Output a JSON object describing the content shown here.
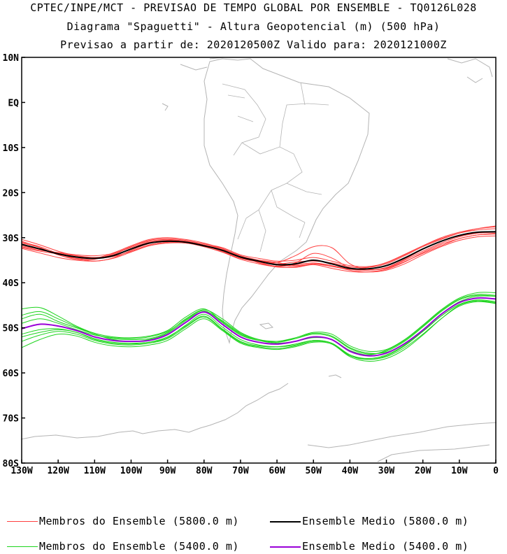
{
  "title": {
    "line1": "CPTEC/INPE/MCT - PREVISAO DE TEMPO GLOBAL POR ENSEMBLE - TQ0126L028",
    "line2": "Diagrama \"Spaguetti\" - Altura Geopotencial (m) (500 hPa)",
    "line3": "Previsao a partir de: 2020120500Z  Valido para: 2020121000Z"
  },
  "map": {
    "lat_labels": [
      "10N",
      "EQ",
      "10S",
      "20S",
      "30S",
      "40S",
      "50S",
      "60S",
      "70S",
      "80S"
    ],
    "lat_values": [
      10,
      0,
      -10,
      -20,
      -30,
      -40,
      -50,
      -60,
      -70,
      -80
    ],
    "lon_labels": [
      "130W",
      "120W",
      "110W",
      "100W",
      "90W",
      "80W",
      "70W",
      "60W",
      "50W",
      "40W",
      "30W",
      "20W",
      "10W",
      "0"
    ],
    "lon_values": [
      -130,
      -120,
      -110,
      -100,
      -90,
      -80,
      -70,
      -60,
      -50,
      -40,
      -30,
      -20,
      -10,
      0
    ],
    "lon_range": [
      -130,
      0
    ],
    "lat_range": [
      -80,
      10
    ],
    "coastline_color": "#b4b4b4"
  },
  "chart_data": {
    "type": "line",
    "x_unit": "longitude (deg)",
    "y_unit": "latitude (deg)",
    "xlim": [
      -130,
      0
    ],
    "ylim": [
      -80,
      10
    ],
    "contours": [
      {
        "level": "5800.0 m",
        "members_color": "#ff4040",
        "mean_color": "#000000",
        "mean": {
          "x": [
            -130,
            -125,
            -120,
            -115,
            -110,
            -105,
            -100,
            -95,
            -90,
            -85,
            -80,
            -75,
            -70,
            -65,
            -60,
            -55,
            -50,
            -45,
            -40,
            -35,
            -30,
            -25,
            -20,
            -15,
            -10,
            -5,
            0
          ],
          "y": [
            -31.5,
            -32.5,
            -33.6,
            -34.3,
            -34.6,
            -34.0,
            -32.5,
            -31.2,
            -30.8,
            -31.0,
            -31.8,
            -32.8,
            -34.3,
            -35.2,
            -36.0,
            -35.8,
            -35.0,
            -35.8,
            -36.8,
            -36.9,
            -36.2,
            -34.5,
            -32.5,
            -30.8,
            -29.5,
            -28.8,
            -28.7
          ]
        },
        "members": [
          {
            "y": [
              -31.0,
              -32.0,
              -33.5,
              -34.6,
              -35.2,
              -34.5,
              -32.8,
              -31.3,
              -30.6,
              -30.8,
              -31.6,
              -32.6,
              -34.0,
              -35.6,
              -36.3,
              -35.6,
              -33.5,
              -34.5,
              -36.7,
              -37.2,
              -36.7,
              -35.0,
              -33.0,
              -31.2,
              -29.8,
              -29.0,
              -28.6
            ]
          },
          {
            "y": [
              -32.0,
              -32.8,
              -33.3,
              -33.8,
              -34.0,
              -33.5,
              -32.2,
              -31.0,
              -30.6,
              -31.0,
              -32.0,
              -33.2,
              -34.6,
              -35.0,
              -35.5,
              -36.2,
              -35.8,
              -36.4,
              -37.0,
              -36.6,
              -35.5,
              -33.7,
              -31.8,
              -30.2,
              -29.0,
              -28.3,
              -28.0
            ]
          },
          {
            "y": [
              -30.4,
              -31.6,
              -33.0,
              -34.0,
              -34.4,
              -33.8,
              -32.0,
              -30.8,
              -30.4,
              -30.8,
              -31.6,
              -32.4,
              -34.2,
              -35.0,
              -35.5,
              -34.0,
              -32.0,
              -32.2,
              -35.8,
              -37.0,
              -36.8,
              -35.3,
              -33.5,
              -31.8,
              -30.2,
              -29.4,
              -29.0
            ]
          },
          {
            "y": [
              -32.4,
              -33.4,
              -34.4,
              -35.0,
              -35.2,
              -34.6,
              -33.2,
              -31.8,
              -31.2,
              -31.2,
              -32.0,
              -33.2,
              -34.8,
              -35.8,
              -36.5,
              -36.6,
              -36.0,
              -36.8,
              -37.5,
              -37.6,
              -37.0,
              -35.4,
              -33.3,
              -31.5,
              -30.2,
              -29.4,
              -29.2
            ]
          },
          {
            "y": [
              -31.2,
              -32.2,
              -33.8,
              -34.8,
              -34.8,
              -33.6,
              -32.0,
              -30.6,
              -30.2,
              -30.6,
              -31.4,
              -32.2,
              -33.8,
              -34.6,
              -35.2,
              -35.0,
              -34.4,
              -35.2,
              -36.2,
              -36.4,
              -35.6,
              -33.8,
              -31.8,
              -30.0,
              -28.8,
              -28.0,
              -27.6
            ]
          },
          {
            "y": [
              -31.8,
              -32.6,
              -33.4,
              -34.0,
              -34.4,
              -34.2,
              -33.0,
              -31.6,
              -31.0,
              -31.2,
              -31.8,
              -32.8,
              -34.4,
              -35.4,
              -36.4,
              -36.0,
              -35.6,
              -36.2,
              -37.2,
              -37.6,
              -37.2,
              -35.8,
              -33.8,
              -32.0,
              -30.6,
              -29.8,
              -29.6
            ]
          },
          {
            "y": [
              -30.8,
              -32.2,
              -33.8,
              -34.6,
              -34.6,
              -33.4,
              -31.8,
              -30.4,
              -30.0,
              -30.4,
              -31.2,
              -32.4,
              -34.0,
              -35.0,
              -35.8,
              -35.4,
              -35.2,
              -35.6,
              -36.5,
              -36.6,
              -35.8,
              -34.0,
              -32.0,
              -30.4,
              -29.0,
              -28.0,
              -27.4
            ]
          },
          {
            "y": [
              -32.2,
              -33.0,
              -33.6,
              -34.2,
              -34.6,
              -34.2,
              -33.0,
              -31.6,
              -31.0,
              -31.0,
              -31.8,
              -33.0,
              -34.6,
              -35.4,
              -36.0,
              -36.4,
              -35.8,
              -36.2,
              -37.0,
              -37.2,
              -36.6,
              -34.8,
              -32.6,
              -30.8,
              -29.6,
              -29.0,
              -28.8
            ]
          }
        ]
      },
      {
        "level": "5400.0 m",
        "members_color": "#1ed41e",
        "mean_color": "#9a00d8",
        "mean": {
          "x": [
            -130,
            -125,
            -120,
            -115,
            -110,
            -105,
            -100,
            -95,
            -90,
            -85,
            -80,
            -75,
            -70,
            -65,
            -60,
            -55,
            -50,
            -45,
            -40,
            -35,
            -30,
            -25,
            -20,
            -15,
            -10,
            -5,
            0
          ],
          "y": [
            -50.2,
            -49.2,
            -49.6,
            -50.6,
            -52.0,
            -52.8,
            -53.0,
            -52.8,
            -51.5,
            -48.8,
            -46.5,
            -49.2,
            -52.0,
            -53.2,
            -53.6,
            -53.0,
            -52.0,
            -52.6,
            -55.2,
            -56.2,
            -55.6,
            -53.5,
            -50.5,
            -47.0,
            -44.4,
            -43.4,
            -43.6
          ]
        },
        "members": [
          {
            "y": [
              -48.0,
              -47.0,
              -48.6,
              -50.0,
              -51.4,
              -52.4,
              -52.6,
              -52.4,
              -51.0,
              -48.0,
              -46.0,
              -48.0,
              -51.0,
              -52.6,
              -53.2,
              -52.4,
              -51.2,
              -51.8,
              -54.4,
              -55.6,
              -55.4,
              -53.6,
              -50.8,
              -47.4,
              -44.8,
              -43.8,
              -44.2
            ]
          },
          {
            "y": [
              -52.0,
              -51.0,
              -50.4,
              -51.0,
              -52.6,
              -53.4,
              -53.6,
              -53.2,
              -52.0,
              -49.6,
              -47.4,
              -50.2,
              -53.0,
              -54.0,
              -54.2,
              -53.6,
              -52.8,
              -53.4,
              -56.0,
              -56.8,
              -56.0,
              -53.8,
              -50.6,
              -47.0,
              -44.2,
              -43.0,
              -43.0
            ]
          },
          {
            "y": [
              -45.8,
              -45.5,
              -47.4,
              -49.6,
              -51.2,
              -52.0,
              -52.2,
              -51.8,
              -50.6,
              -47.6,
              -45.8,
              -48.6,
              -51.4,
              -52.8,
              -53.4,
              -53.0,
              -52.2,
              -52.6,
              -55.0,
              -56.0,
              -55.0,
              -52.8,
              -49.6,
              -46.2,
              -43.6,
              -42.6,
              -42.8
            ]
          },
          {
            "y": [
              -54.4,
              -52.6,
              -51.4,
              -51.8,
              -53.2,
              -54.0,
              -54.2,
              -53.8,
              -52.8,
              -50.2,
              -48.0,
              -50.6,
              -53.4,
              -54.4,
              -54.8,
              -54.2,
              -53.2,
              -53.6,
              -56.4,
              -57.4,
              -56.8,
              -54.8,
              -51.6,
              -48.0,
              -45.0,
              -44.0,
              -44.4
            ]
          },
          {
            "y": [
              -49.0,
              -48.0,
              -49.0,
              -50.4,
              -51.6,
              -52.2,
              -52.4,
              -52.0,
              -50.8,
              -48.2,
              -46.2,
              -48.8,
              -51.6,
              -52.8,
              -53.0,
              -52.2,
              -51.0,
              -51.4,
              -54.0,
              -55.2,
              -54.8,
              -52.6,
              -49.4,
              -46.0,
              -43.4,
              -42.2,
              -42.2
            ]
          },
          {
            "y": [
              -51.4,
              -50.4,
              -50.2,
              -51.0,
              -52.4,
              -53.2,
              -53.4,
              -53.2,
              -52.2,
              -49.4,
              -47.0,
              -49.8,
              -52.6,
              -53.8,
              -54.2,
              -53.8,
              -52.8,
              -53.4,
              -56.2,
              -57.0,
              -56.4,
              -54.4,
              -51.4,
              -48.0,
              -45.2,
              -44.2,
              -44.6
            ]
          },
          {
            "y": [
              -47.2,
              -46.4,
              -48.0,
              -49.8,
              -51.4,
              -52.6,
              -53.0,
              -52.6,
              -51.2,
              -48.4,
              -46.4,
              -48.4,
              -51.2,
              -52.6,
              -53.0,
              -52.4,
              -51.4,
              -52.0,
              -54.6,
              -55.8,
              -55.2,
              -53.0,
              -49.8,
              -46.4,
              -43.8,
              -42.8,
              -43.0
            ]
          },
          {
            "y": [
              -53.0,
              -51.6,
              -50.8,
              -51.4,
              -52.8,
              -53.6,
              -53.8,
              -53.4,
              -52.4,
              -49.8,
              -47.6,
              -50.4,
              -53.2,
              -54.2,
              -54.6,
              -54.0,
              -53.0,
              -53.4,
              -56.0,
              -57.0,
              -56.2,
              -54.0,
              -50.8,
              -47.4,
              -44.8,
              -44.0,
              -44.6
            ]
          }
        ]
      }
    ],
    "legend": {
      "members_5800": "Membros do Ensemble (5800.0 m)",
      "mean_5800": "Ensemble Medio (5800.0 m)",
      "members_5400": "Membros do Ensemble (5400.0 m)",
      "mean_5400": "Ensemble Medio (5400.0 m)"
    }
  }
}
